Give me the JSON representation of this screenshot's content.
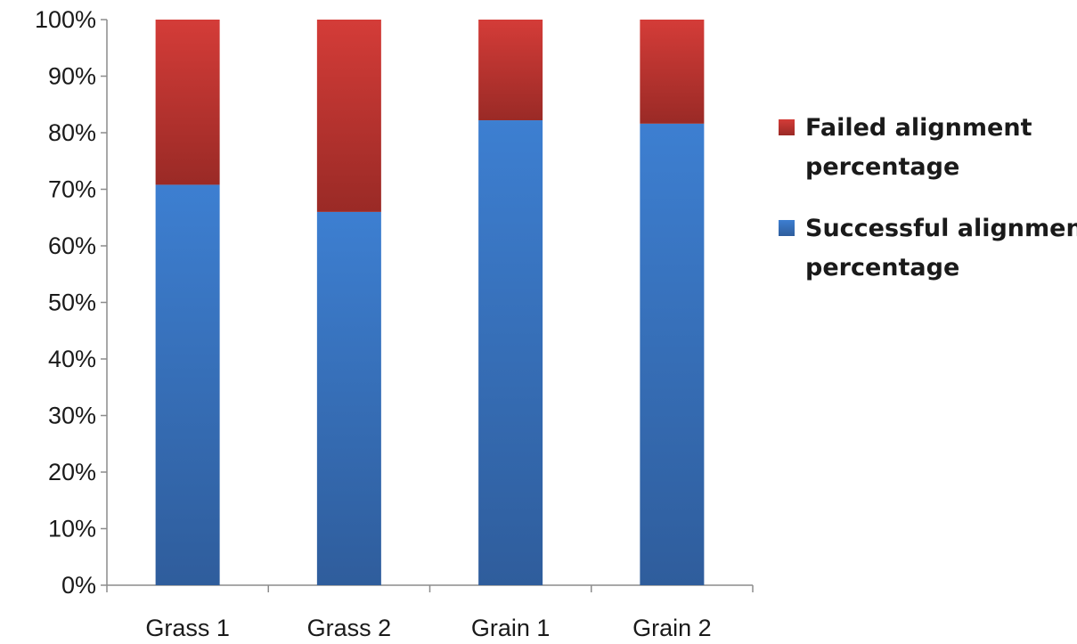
{
  "chart_data": {
    "type": "bar",
    "stacked": true,
    "normalized_percent": true,
    "categories": [
      "Grass 1",
      "Grass 2",
      "Grain 1",
      "Grain 2"
    ],
    "series": [
      {
        "name": "Successful alignment percentage",
        "values": [
          70.8,
          66.0,
          82.2,
          81.6
        ],
        "color": "#3a78c8"
      },
      {
        "name": "Failed alignment percentage",
        "values": [
          29.2,
          34.0,
          17.8,
          18.4
        ],
        "color": "#c23a36"
      }
    ],
    "y_ticks": [
      "0%",
      "10%",
      "20%",
      "30%",
      "40%",
      "50%",
      "60%",
      "70%",
      "80%",
      "90%",
      "100%"
    ],
    "ylim": [
      0,
      100
    ],
    "title": "",
    "xlabel": "",
    "ylabel": "",
    "grid": false,
    "legend": {
      "position": "right",
      "entries": [
        {
          "series": 1,
          "lines": [
            "Failed alignment",
            "percentage"
          ]
        },
        {
          "series": 0,
          "lines": [
            "Successful alignment",
            "percentage"
          ]
        }
      ]
    }
  }
}
